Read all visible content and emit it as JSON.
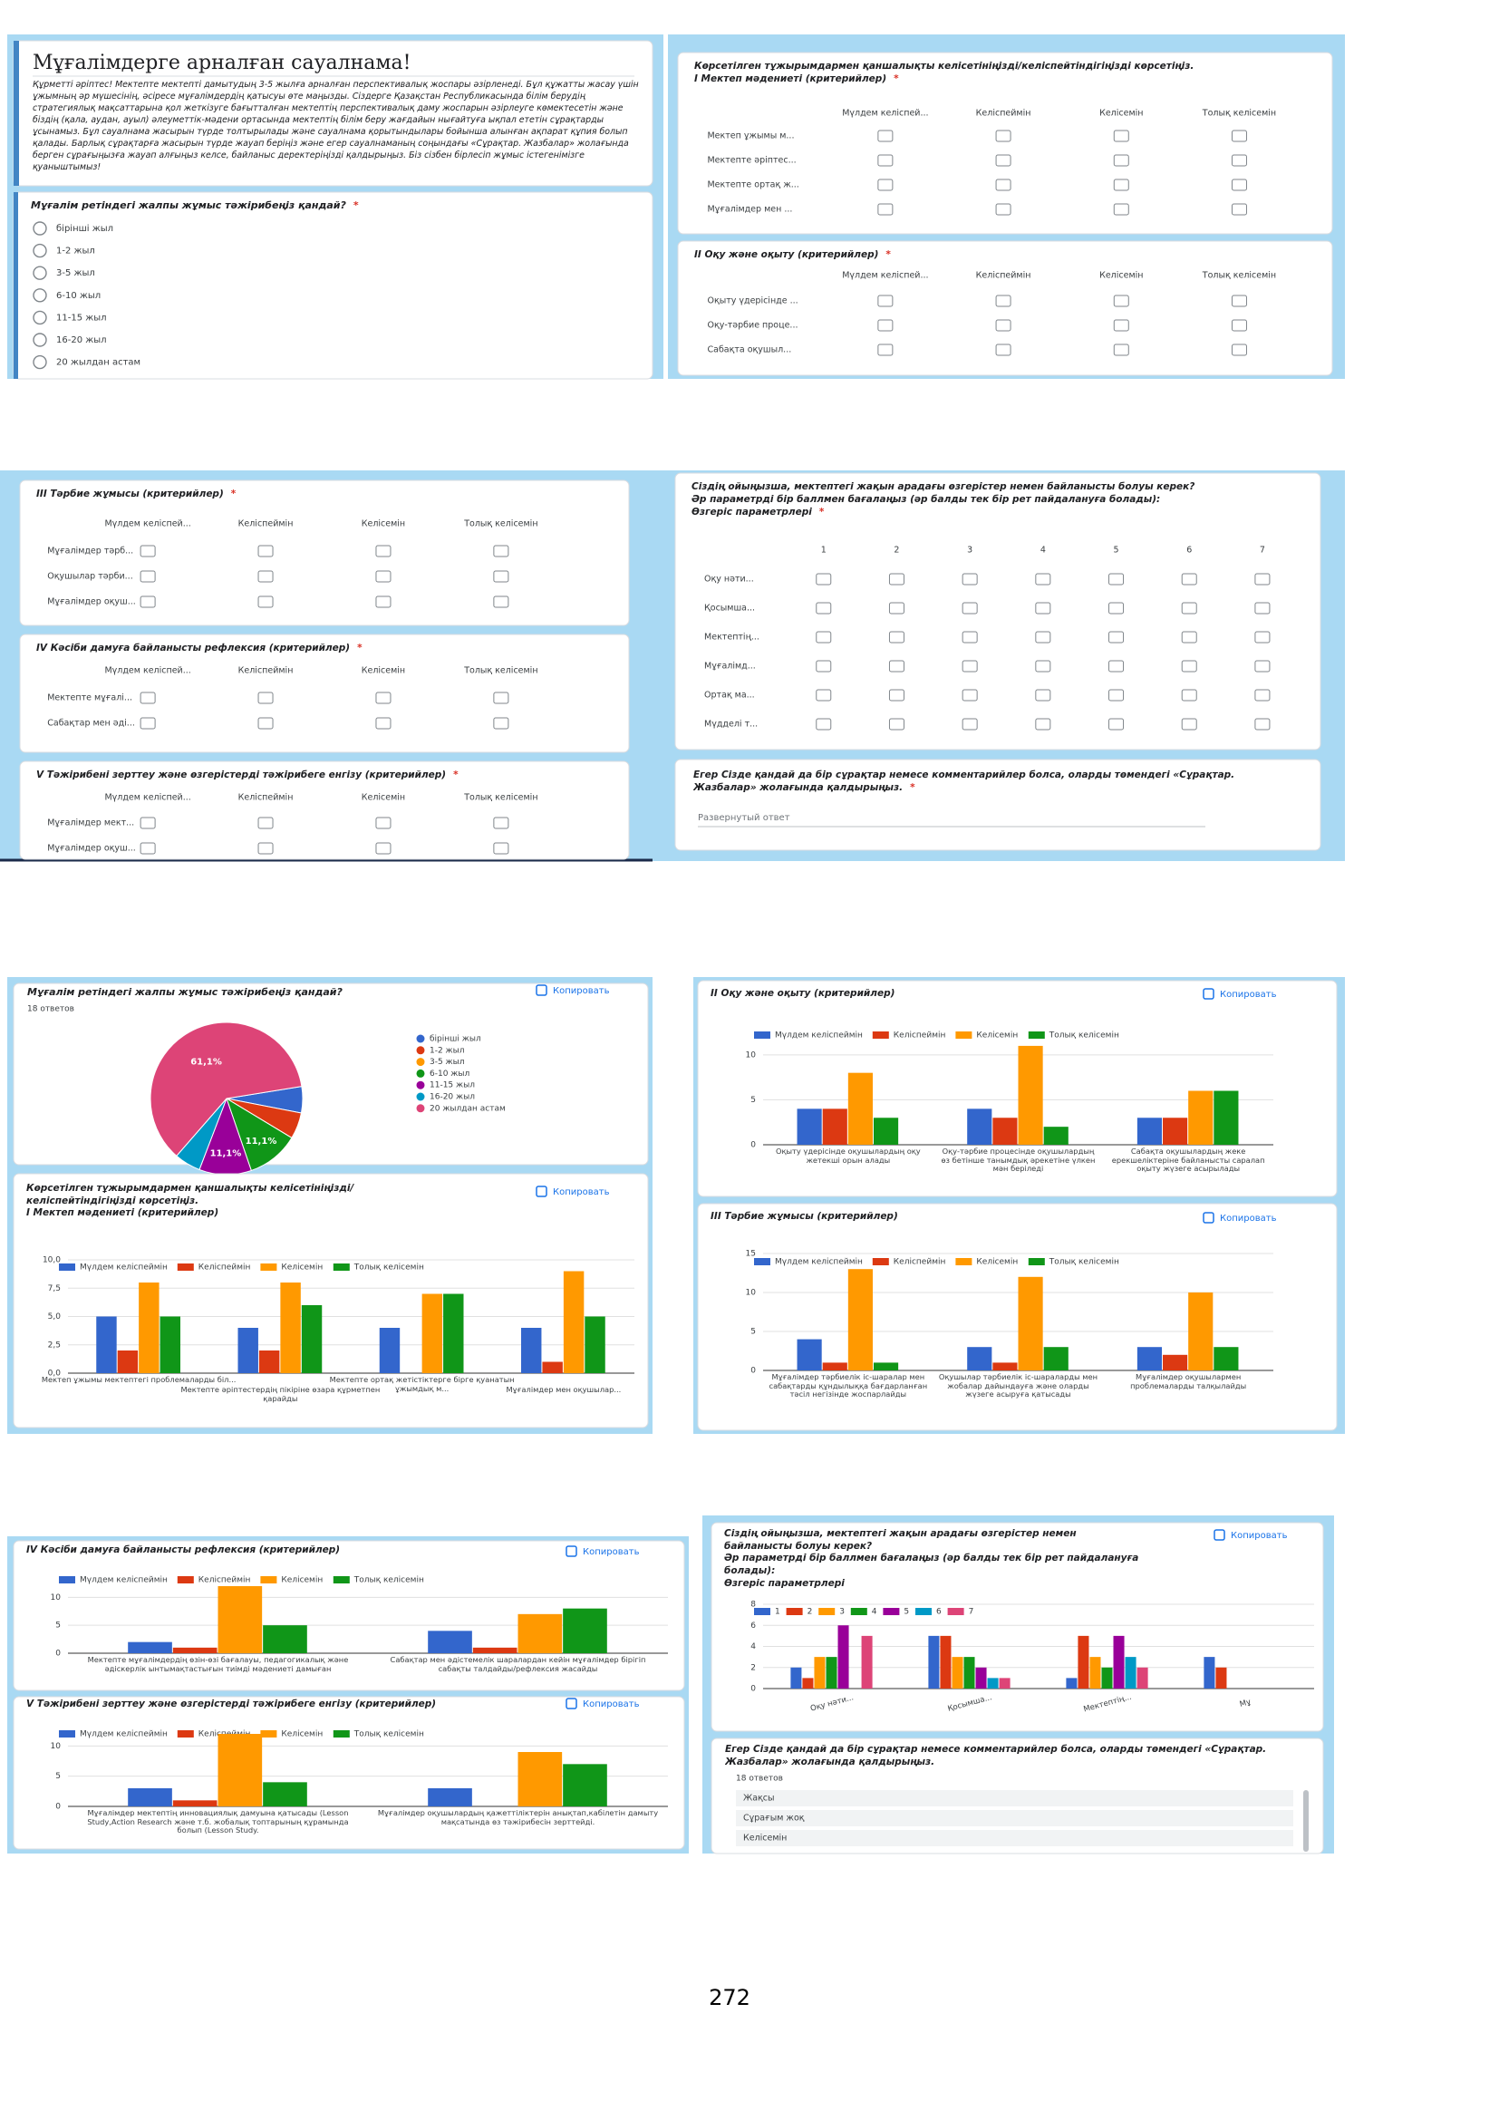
{
  "form": {
    "title": "Мұғалімдерге арналған сауалнама!",
    "intro": "Құрметті әріптес! Мектепте мектепті дамытудың 3-5 жылға арналған перспективалық жоспары әзірленеді. Бұл құжатты жасау үшін ұжымның әр мүшесінің, әсіресе мұғалімдердің қатысуы өте маңызды. Сіздерге Қазақстан Республикасында білім берудің стратегиялық мақсаттарына қол жеткізуге бағытталған мектептің перспективалық даму жоспарын әзірлеуге көмектесетін және біздің (қала, аудан, ауыл) әлеуметтік-мәдени ортасында мектептің білім беру жағдайын нығайтуға ықпал ететін сұрақтарды ұсынамыз. Бұл сауалнама жасырын түрде толтырылады және сауалнама қорытындылары бойынша алынған ақпарат құпия болып қалады. Барлық сұрақтарға жасырын түрде жауап беріңіз және егер сауалнаманың соңындағы «Сұрақтар. Жазбалар» жолағында берген сұрағыңызға жауап алғыңыз келсе, байланыс деректеріңізді қалдырыңыз. Біз сізбен бірлесіп жұмыс істегенімізге қуаныштымыз!",
    "required": "*",
    "q1": {
      "title": "Мұғалім ретіндегі жалпы жұмыс тәжірибеңіз қандай?",
      "options": [
        "бірінші жыл",
        "1-2 жыл",
        "3-5 жыл",
        "6-10 жыл",
        "11-15 жыл",
        "16-20 жыл",
        "20 жылдан астам"
      ]
    },
    "agree_columns": [
      "Мүлдем келіспей...",
      "Келіспеймін",
      "Келісемін",
      "Толық келісемін"
    ],
    "grids": [
      {
        "title": "Көрсетілген тұжырымдармен қаншалықты келісетініңізді/келіспейтіндігіңізді көрсетіңіз.\nI Мектеп мәдениеті (критерийлер)",
        "rows": [
          "Мектеп ұжымы м...",
          "Мектепте әріптес...",
          "Мектепте ортақ ж...",
          "Мұғалімдер мен ..."
        ]
      },
      {
        "title": "II Оқу және оқыту (критерийлер)",
        "rows": [
          "Оқыту үдерісінде ...",
          "Оқу-тәрбие проце...",
          "Сабақта оқушыл..."
        ]
      },
      {
        "title": "III Тәрбие жұмысы (критерийлер)",
        "rows": [
          "Мұғалімдер тәрб...",
          "Оқушылар тәрби...",
          "Мұғалімдер оқуш..."
        ]
      },
      {
        "title": "IV Кәсіби дамуға байланысты рефлексия (критерийлер)",
        "rows": [
          "Мектепте мұғалі...",
          "Сабақтар мен әді..."
        ]
      },
      {
        "title": "V Тәжірибені зерттеу және өзгерістерді тәжірибеге енгізу (критерийлер)",
        "rows": [
          "Мұғалімдер мект...",
          "Мұғалімдер оқуш..."
        ]
      }
    ],
    "change_params": {
      "title": "Сіздің ойыңызша, мектептегі жақын арадағы өзгерістер немен байланысты болуы керек?\nӘр параметрді бір баллмен бағалаңыз (әр балды тек бір рет пайдалануға болады):\nӨзгеріс параметрлері",
      "columns": [
        "1",
        "2",
        "3",
        "4",
        "5",
        "6",
        "7"
      ],
      "rows": [
        "Оқу нәти...",
        "Қосымша...",
        "Мектептің...",
        "Мұғалімд...",
        "Ортақ ма...",
        "Мүдделі т..."
      ]
    },
    "comment": {
      "title": "Егер Сізде қандай да бір сұрақтар немесе комментарийлер болса, оларды төмендегі «Сұрақтар. Жазбалар» жолағында қалдырыңыз.",
      "placeholder": "Развернутый ответ"
    }
  },
  "copy_button": "Копировать",
  "chart_data": [
    {
      "type": "pie",
      "title": "Мұғалім ретіндегі жалпы жұмыс тәжірибеңіз қандай?",
      "subtitle": "18 ответов",
      "categories": [
        "бірінші жыл",
        "1-2 жыл",
        "3-5 жыл",
        "6-10 жыл",
        "11-15 жыл",
        "16-20 жыл",
        "20 жылдан астам"
      ],
      "values": [
        5.6,
        5.6,
        0,
        11.1,
        11.1,
        5.6,
        61.1
      ],
      "value_labels": [
        null,
        null,
        null,
        "11,1%",
        "11,1%",
        null,
        "61,1%"
      ],
      "colors": [
        "#3366cc",
        "#dc3912",
        "#ff9900",
        "#109618",
        "#990099",
        "#0099c6",
        "#dd4477"
      ]
    },
    {
      "type": "bar",
      "title": "Көрсетілген тұжырымдармен қаншалықты келісетініңізді/\nкеліспейтіндігіңізді көрсетіңіз.\nI Мектеп мәдениеті (критерийлер)",
      "categories": [
        "Мектеп ұжымы мектептегі проблемаларды біл...",
        "Мектепте әріптестердің пікіріне өзара құрметпен қарайды",
        "Мектепте ортақ жетістіктерге бірге қуанатын ұжымдық м...",
        "Мұғалімдер мен оқушылар..."
      ],
      "series": [
        {
          "name": "Мүлдем келіспеймін",
          "color": "#3366cc",
          "values": [
            5,
            4,
            4,
            4
          ]
        },
        {
          "name": "Келіспеймін",
          "color": "#dc3912",
          "values": [
            2,
            2,
            0,
            1
          ]
        },
        {
          "name": "Келісемін",
          "color": "#ff9900",
          "values": [
            8,
            8,
            7,
            9
          ]
        },
        {
          "name": "Толық келісемін",
          "color": "#109618",
          "values": [
            5,
            6,
            7,
            5
          ]
        }
      ],
      "ylim": [
        0,
        10
      ],
      "yticks": [
        {
          "value": 0,
          "label": "0,0"
        },
        {
          "value": 2.5,
          "label": "2,5"
        },
        {
          "value": 5,
          "label": "5,0"
        },
        {
          "value": 7.5,
          "label": "7,5"
        },
        {
          "value": 10,
          "label": "10,0"
        }
      ],
      "grid": true
    },
    {
      "type": "bar",
      "title": "II Оқу және оқыту (критерийлер)",
      "categories": [
        "Оқыту үдерісінде оқушылардың оқу жетекші орын алады",
        "Оқу-тәрбие процесінде оқушылардың өз бетінше танымдық әрекетіне үлкен мән беріледі",
        "Сабақта оқушылардың жеке ерекшеліктеріне байланысты саралап оқыту жүзеге асырылады"
      ],
      "series": [
        {
          "name": "Мүлдем келіспеймін",
          "color": "#3366cc",
          "values": [
            4,
            4,
            3
          ]
        },
        {
          "name": "Келіспеймін",
          "color": "#dc3912",
          "values": [
            4,
            3,
            3
          ]
        },
        {
          "name": "Келісемін",
          "color": "#ff9900",
          "values": [
            8,
            11,
            6
          ]
        },
        {
          "name": "Толық келісемін",
          "color": "#109618",
          "values": [
            3,
            2,
            6
          ]
        }
      ],
      "ylim": [
        0,
        12
      ],
      "yticks": [
        0,
        5,
        10
      ],
      "grid": true
    },
    {
      "type": "bar",
      "title": "III Тәрбие жұмысы (критерийлер)",
      "categories": [
        "Мұғалімдер тәрбиелік іс-шаралар мен сабақтарды құндылыққа бағдарланған тәсіл негізінде жоспарлайды",
        "Оқушылар тәрбиелік іс-шараларды мен жобалар дайындауға және оларды жүзеге асыруға қатысады",
        "Мұғалімдер оқушылармен проблемаларды талқылайды"
      ],
      "series": [
        {
          "name": "Мүлдем келіспеймін",
          "color": "#3366cc",
          "values": [
            4,
            3,
            3
          ]
        },
        {
          "name": "Келіспеймін",
          "color": "#dc3912",
          "values": [
            1,
            1,
            2
          ]
        },
        {
          "name": "Келісемін",
          "color": "#ff9900",
          "values": [
            13,
            12,
            10
          ]
        },
        {
          "name": "Толық келісемін",
          "color": "#109618",
          "values": [
            1,
            3,
            3
          ]
        }
      ],
      "ylim": [
        0,
        15
      ],
      "yticks": [
        0,
        5,
        10,
        15
      ],
      "grid": true
    },
    {
      "type": "bar",
      "title": "IV Кәсіби дамуға байланысты рефлексия (критерийлер)",
      "categories": [
        "Мектепте мұғалімдердің өзін-өзі бағалауы, педагогикалық және әдіскерлік ынтымақтастығын тиімді мәдениеті дамыған",
        "Сабақтар мен әдістемелік шаралардан кейін мұғалімдер бірігіп сабақты талдайды/рефлексия жасайды"
      ],
      "series": [
        {
          "name": "Мүлдем келіспеймін",
          "color": "#3366cc",
          "values": [
            2,
            4
          ]
        },
        {
          "name": "Келіспеймін",
          "color": "#dc3912",
          "values": [
            1,
            1
          ]
        },
        {
          "name": "Келісемін",
          "color": "#ff9900",
          "values": [
            12,
            7
          ]
        },
        {
          "name": "Толық келісемін",
          "color": "#109618",
          "values": [
            5,
            8
          ]
        }
      ],
      "ylim": [
        0,
        12
      ],
      "yticks": [
        0,
        5,
        10
      ],
      "grid": true
    },
    {
      "type": "bar",
      "title": "V Тәжірибені зерттеу және өзгерістерді тәжірибеге енгізу (критерийлер)",
      "categories": [
        "Мұғалімдер мектептің инновациялық дамуына қатысады (Lesson Study,Action Research және т.б. жобалық топтарының құрамында болып (Lesson Study.",
        "Мұғалімдер оқушылардың қажеттіліктерін анықтап,кабілетін дамыту мақсатында өз тәжірибесін зерттейді."
      ],
      "series": [
        {
          "name": "Мүлдем келіспеймін",
          "color": "#3366cc",
          "values": [
            3,
            3
          ]
        },
        {
          "name": "Келіспеймін",
          "color": "#dc3912",
          "values": [
            1,
            0
          ]
        },
        {
          "name": "Келісемін",
          "color": "#ff9900",
          "values": [
            12,
            9
          ]
        },
        {
          "name": "Толық келісемін",
          "color": "#109618",
          "values": [
            4,
            7
          ]
        }
      ],
      "ylim": [
        0,
        12
      ],
      "yticks": [
        0,
        5,
        10
      ],
      "grid": true
    },
    {
      "type": "bar",
      "title": "Сіздің ойыңызша, мектептегі жақын арадағы өзгерістер немен\nбайланысты болуы керек?\nӘр параметрді бір баллмен бағалаңыз (әр балды тек бір рет пайдалануға\nболады):\nӨзгеріс параметрлері",
      "categories": [
        "Оқу нәти...",
        "Қосымша...",
        "Мектептің...",
        "Мұ"
      ],
      "series": [
        {
          "name": "1",
          "color": "#3366cc",
          "values": [
            2,
            5,
            1,
            3
          ]
        },
        {
          "name": "2",
          "color": "#dc3912",
          "values": [
            1,
            5,
            5,
            2
          ]
        },
        {
          "name": "3",
          "color": "#ff9900",
          "values": [
            3,
            3,
            3,
            null
          ]
        },
        {
          "name": "4",
          "color": "#109618",
          "values": [
            3,
            3,
            2,
            null
          ]
        },
        {
          "name": "5",
          "color": "#990099",
          "values": [
            6,
            2,
            5,
            null
          ]
        },
        {
          "name": "6",
          "color": "#0099c6",
          "values": [
            0,
            1,
            3,
            null
          ]
        },
        {
          "name": "7",
          "color": "#dd4477",
          "values": [
            5,
            1,
            2,
            null
          ]
        }
      ],
      "ylim": [
        0,
        8
      ],
      "yticks": [
        0,
        2,
        4,
        6,
        8
      ],
      "grid": true,
      "rotated_labels": true
    }
  ],
  "responses": {
    "title": "Егер Сізде қандай да бір сұрақтар немесе комментарийлер болса, оларды төмендегі «Сұрақтар. Жазбалар» жолағында қалдырыңыз.",
    "count": "18 ответов",
    "items": [
      "Жақсы",
      "Сұрағым жоқ",
      "Келісемін"
    ]
  },
  "page_number": "272"
}
